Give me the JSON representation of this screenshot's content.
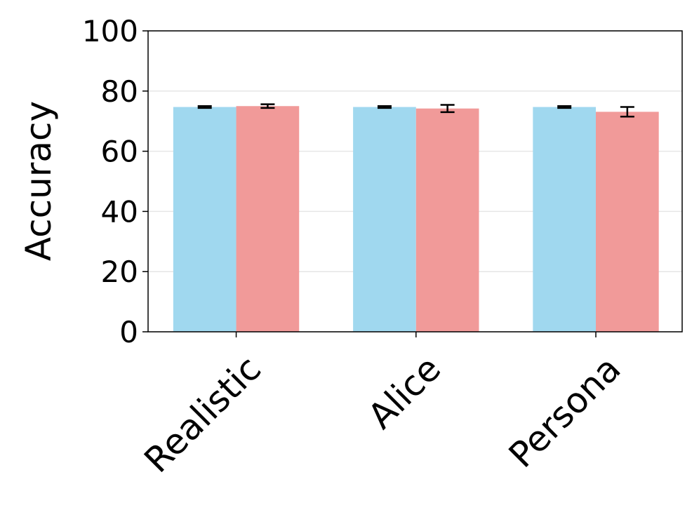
{
  "chart_data": {
    "type": "bar",
    "y_label": "Accuracy",
    "categories": [
      "Realistic",
      "Alice",
      "Persona"
    ],
    "series": [
      {
        "color": "#a0d8ef",
        "values": [
          74.7,
          74.7,
          74.7
        ],
        "errors": [
          0.3,
          0.3,
          0.3
        ]
      },
      {
        "color": "#f19a99",
        "values": [
          75.0,
          74.2,
          73.1
        ],
        "errors": [
          0.6,
          1.2,
          1.6
        ]
      }
    ],
    "ylim": [
      0,
      100
    ],
    "yticks": [
      0,
      20,
      40,
      60,
      80,
      100
    ],
    "grid": true
  }
}
